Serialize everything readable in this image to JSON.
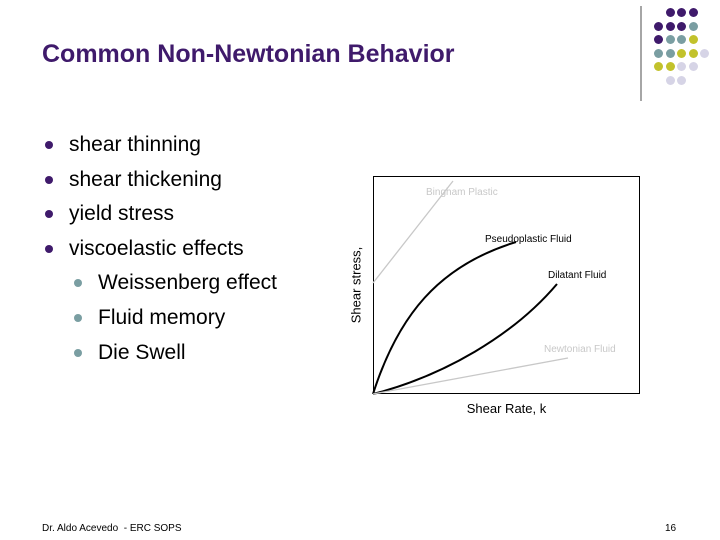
{
  "slide": {
    "title": "Common Non-Newtonian Behavior",
    "bullets": [
      {
        "level": 1,
        "text": "shear thinning"
      },
      {
        "level": 1,
        "text": "shear thickening"
      },
      {
        "level": 1,
        "text": "yield stress"
      },
      {
        "level": 1,
        "text": "viscoelastic effects"
      },
      {
        "level": 2,
        "text": "Weissenberg effect"
      },
      {
        "level": 2,
        "text": "Fluid memory"
      },
      {
        "level": 2,
        "text": "Die Swell"
      }
    ],
    "footer": {
      "left": "Dr. Aldo Acevedo  - ERC SOPS",
      "page_number": "16"
    }
  },
  "diagram": {
    "xlabel": "Shear Rate, k",
    "ylabel": "Shear stress,",
    "curves": [
      {
        "label": "Bingham Plastic",
        "color": "#c8c8c8",
        "label_color": "#c8c8c8"
      },
      {
        "label": "Pseudoplastic Fluid",
        "color": "#000000",
        "label_color": "#000000"
      },
      {
        "label": "Dilatant Fluid",
        "color": "#000000",
        "label_color": "#000000"
      },
      {
        "label": "Newtonian Fluid",
        "color": "#c8c8c8",
        "label_color": "#c8c8c8"
      }
    ]
  },
  "theme": {
    "title_color": "#3f1a6b",
    "bullet1_color": "#3f1a6b",
    "bullet2_color": "#7a9ea2",
    "dot_colors": {
      "purple": "#3f1a6b",
      "teal": "#7a9ea2",
      "olive": "#c2c22c",
      "lavender": "#d6d4e6"
    }
  }
}
